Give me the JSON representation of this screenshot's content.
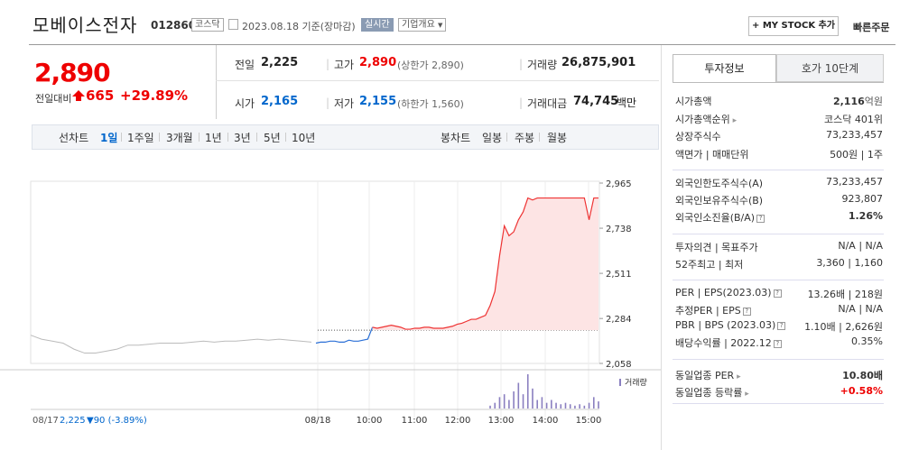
{
  "header": {
    "name": "모베이스전자",
    "code": "012860",
    "market": "코스닥",
    "date": "2023.08.18 기준(장마감)",
    "realtime": "실시간",
    "overview": "기업개요",
    "mystock": "+ MY STOCK 추가",
    "quick_order": "빠른주문"
  },
  "price": {
    "current": "2,890",
    "change_label": "전일대비",
    "change_value": "665",
    "change_pct": "+29.89%"
  },
  "summary": {
    "prev_label": "전일",
    "prev_value": "2,225",
    "high_label": "고가",
    "high_value": "2,890",
    "high_sub": "(상한가 2,890)",
    "volume_label": "거래량",
    "volume_value": "26,875,901",
    "open_label": "시가",
    "open_value": "2,165",
    "low_label": "저가",
    "low_value": "2,155",
    "low_sub": "(하한가 1,560)",
    "amount_label": "거래대금",
    "amount_value": "74,745",
    "amount_unit": "백만"
  },
  "periods": {
    "line_label": "선차트",
    "line_items": [
      "1일",
      "1주일",
      "3개월",
      "1년",
      "3년",
      "5년",
      "10년"
    ],
    "candle_label": "봉차트",
    "candle_items": [
      "일봉",
      "주봉",
      "월봉"
    ]
  },
  "chart_data": {
    "type": "line",
    "y_ticks": [
      "2,965",
      "2,738",
      "2,511",
      "2,284",
      "2,058"
    ],
    "y_range": [
      2058,
      2965
    ],
    "x_labels": [
      "08/18",
      "10:00",
      "11:00",
      "12:00",
      "13:00",
      "14:00",
      "15:00"
    ],
    "prev_day_label": "08/17",
    "prev_day_close": "2,225",
    "prev_day_change": "▼90 (-3.89%)",
    "volume_label": "거래량",
    "prev_close": 2225,
    "prev_day_series": [
      2200,
      2180,
      2170,
      2160,
      2130,
      2110,
      2110,
      2120,
      2130,
      2150,
      2150,
      2155,
      2160,
      2160,
      2160,
      2165,
      2170,
      2165,
      2170,
      2170,
      2175,
      2180,
      2175,
      2180,
      2175,
      2170,
      2165
    ],
    "today_series": [
      2160,
      2165,
      2165,
      2170,
      2170,
      2165,
      2165,
      2175,
      2170,
      2170,
      2175,
      2180,
      2240,
      2235,
      2240,
      2245,
      2250,
      2245,
      2240,
      2230,
      2230,
      2235,
      2235,
      2240,
      2240,
      2235,
      2235,
      2235,
      2240,
      2245,
      2255,
      2260,
      2270,
      2280,
      2280,
      2290,
      2300,
      2350,
      2420,
      2600,
      2750,
      2700,
      2720,
      2780,
      2820,
      2890,
      2880,
      2890,
      2890,
      2890,
      2890,
      2890,
      2890,
      2890,
      2890,
      2890,
      2890,
      2890,
      2780,
      2890,
      2890
    ],
    "volume_bars": [
      0,
      0,
      0,
      0,
      0,
      0,
      0,
      0,
      0,
      0,
      0,
      0,
      0,
      0,
      0,
      0,
      0,
      0,
      0,
      0,
      0,
      0,
      0,
      0,
      0,
      0,
      0,
      0,
      0,
      0,
      0,
      0,
      0,
      0,
      0,
      0,
      0,
      2,
      4,
      8,
      10,
      6,
      12,
      18,
      10,
      24,
      14,
      6,
      8,
      4,
      6,
      4,
      3,
      4,
      3,
      2,
      3,
      2,
      4,
      8,
      5
    ]
  },
  "invest_tabs": {
    "active": "투자정보",
    "other": "호가 10단계"
  },
  "invest": {
    "rows1": [
      {
        "label": "시가총액",
        "value": "2,116",
        "unit": "억원"
      },
      {
        "label": "시가총액순위",
        "value": "코스닥 401위"
      },
      {
        "label": "상장주식수",
        "value": "73,233,457"
      },
      {
        "label": "액면가 | 매매단위",
        "value": "500원 | 1주"
      }
    ],
    "rows2": [
      {
        "label": "외국인한도주식수(A)",
        "value": "73,233,457"
      },
      {
        "label": "외국인보유주식수(B)",
        "value": "923,807"
      },
      {
        "label": "외국인소진율(B/A)",
        "value": "1.26%"
      }
    ],
    "rows3": [
      {
        "label": "투자의견 | 목표주가",
        "value": "N/A | N/A"
      },
      {
        "label": "52주최고 | 최저",
        "value": "3,360 | 1,160"
      }
    ],
    "rows4": [
      {
        "label": "PER | EPS(2023.03)",
        "value": "13.26배 | 218원"
      },
      {
        "label": "추정PER | EPS",
        "value": "N/A | N/A"
      },
      {
        "label": "PBR | BPS (2023.03)",
        "value": "1.10배 | 2,626원"
      },
      {
        "label": "배당수익률 | 2022.12",
        "value": "0.35%"
      }
    ],
    "rows5": [
      {
        "label": "동일업종 PER",
        "value": "10.80배"
      },
      {
        "label": "동일업종 등락률",
        "value": "+0.58%"
      }
    ]
  }
}
